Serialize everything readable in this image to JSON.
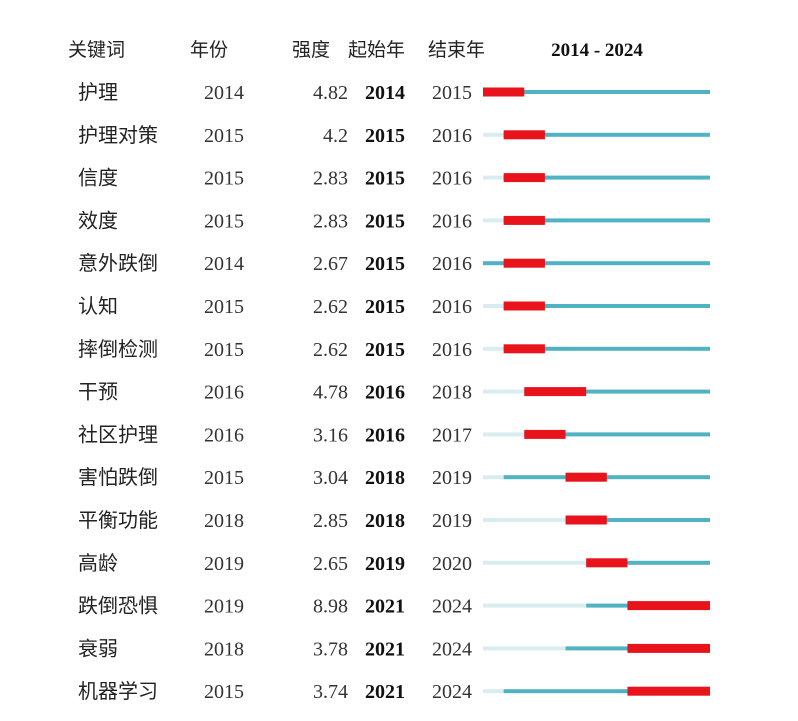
{
  "headers": {
    "keyword": "关键词",
    "year": "年份",
    "strength": "强度",
    "begin": "起始年",
    "end": "结束年",
    "range": "2014 - 2024"
  },
  "colors": {
    "base_light": "#d9ecf0",
    "base_active": "#4fb3c4",
    "burst": "#e8131b"
  },
  "chart_data": {
    "type": "table",
    "year_range": [
      2014,
      2024
    ],
    "rows": [
      {
        "keyword": "护理",
        "year": "2014",
        "strength": "4.82",
        "begin": "2014",
        "end": "2015"
      },
      {
        "keyword": "护理对策",
        "year": "2015",
        "strength": "4.2",
        "begin": "2015",
        "end": "2016"
      },
      {
        "keyword": "信度",
        "year": "2015",
        "strength": "2.83",
        "begin": "2015",
        "end": "2016"
      },
      {
        "keyword": "效度",
        "year": "2015",
        "strength": "2.83",
        "begin": "2015",
        "end": "2016"
      },
      {
        "keyword": "意外跌倒",
        "year": "2014",
        "strength": "2.67",
        "begin": "2015",
        "end": "2016"
      },
      {
        "keyword": "认知",
        "year": "2015",
        "strength": "2.62",
        "begin": "2015",
        "end": "2016"
      },
      {
        "keyword": "摔倒检测",
        "year": "2015",
        "strength": "2.62",
        "begin": "2015",
        "end": "2016"
      },
      {
        "keyword": "干预",
        "year": "2016",
        "strength": "4.78",
        "begin": "2016",
        "end": "2018"
      },
      {
        "keyword": "社区护理",
        "year": "2016",
        "strength": "3.16",
        "begin": "2016",
        "end": "2017"
      },
      {
        "keyword": "害怕跌倒",
        "year": "2015",
        "strength": "3.04",
        "begin": "2018",
        "end": "2019"
      },
      {
        "keyword": "平衡功能",
        "year": "2018",
        "strength": "2.85",
        "begin": "2018",
        "end": "2019"
      },
      {
        "keyword": "高龄",
        "year": "2019",
        "strength": "2.65",
        "begin": "2019",
        "end": "2020"
      },
      {
        "keyword": "跌倒恐惧",
        "year": "2019",
        "strength": "8.98",
        "begin": "2021",
        "end": "2024"
      },
      {
        "keyword": "衰弱",
        "year": "2018",
        "strength": "3.78",
        "begin": "2021",
        "end": "2024"
      },
      {
        "keyword": "机器学习",
        "year": "2015",
        "strength": "3.74",
        "begin": "2021",
        "end": "2024"
      }
    ]
  }
}
